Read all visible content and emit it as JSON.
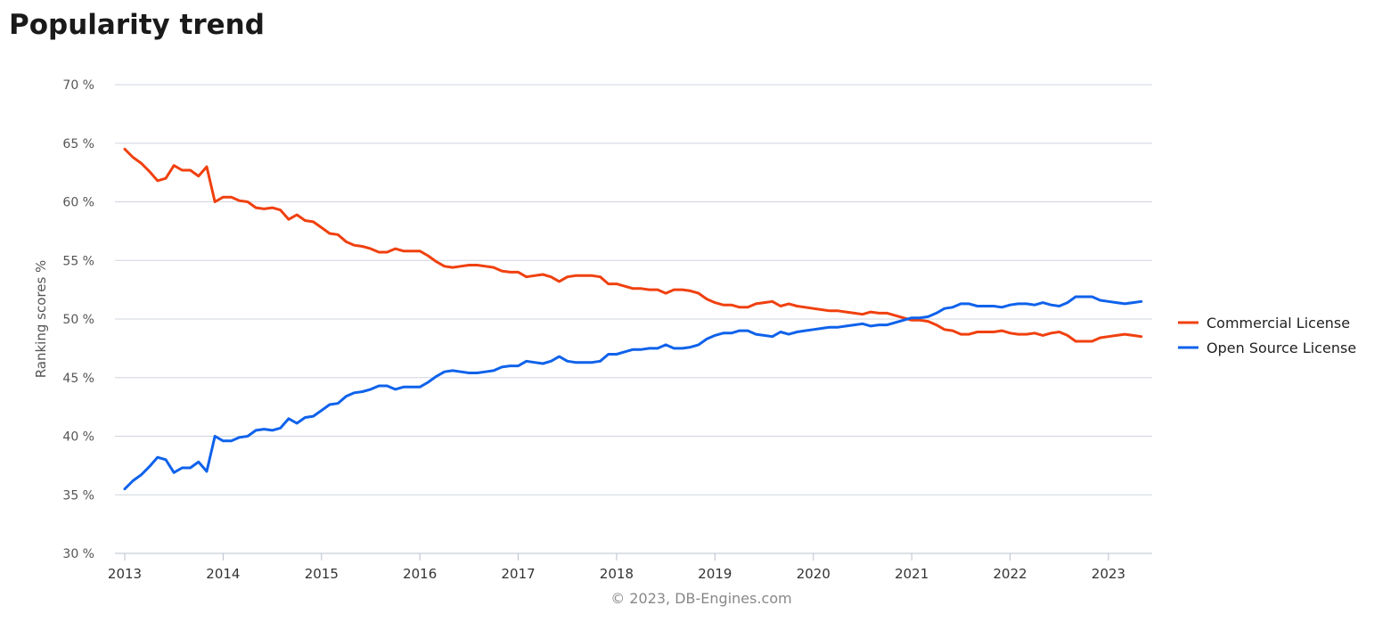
{
  "page": {
    "title": "Popularity trend"
  },
  "chart_data": {
    "type": "line",
    "x_axis": {
      "range": [
        "2013-01",
        "2023-05"
      ],
      "ticks": [
        "2013",
        "2014",
        "2015",
        "2016",
        "2017",
        "2018",
        "2019",
        "2020",
        "2021",
        "2022",
        "2023"
      ]
    },
    "y_axis": {
      "label": "Ranking scores %",
      "range": [
        30,
        70
      ],
      "ticks": [
        "30 %",
        "35 %",
        "40 %",
        "45 %",
        "50 %",
        "55 %",
        "60 %",
        "65 %",
        "70 %"
      ],
      "tick_values": [
        30,
        35,
        40,
        45,
        50,
        55,
        60,
        65,
        70
      ]
    },
    "grid": true,
    "legend_position": "right",
    "credit": "© 2023, DB-Engines.com",
    "series": [
      {
        "name": "Commercial License",
        "color": "#f0400f",
        "points": [
          [
            "2013-01",
            64.5
          ],
          [
            "2013-02",
            63.8
          ],
          [
            "2013-03",
            63.3
          ],
          [
            "2013-04",
            62.6
          ],
          [
            "2013-05",
            61.8
          ],
          [
            "2013-06",
            62.0
          ],
          [
            "2013-07",
            63.1
          ],
          [
            "2013-08",
            62.7
          ],
          [
            "2013-09",
            62.7
          ],
          [
            "2013-10",
            62.2
          ],
          [
            "2013-11",
            63.0
          ],
          [
            "2013-12",
            60.0
          ],
          [
            "2014-01",
            60.4
          ],
          [
            "2014-02",
            60.4
          ],
          [
            "2014-03",
            60.1
          ],
          [
            "2014-04",
            60.0
          ],
          [
            "2014-05",
            59.5
          ],
          [
            "2014-06",
            59.4
          ],
          [
            "2014-07",
            59.5
          ],
          [
            "2014-08",
            59.3
          ],
          [
            "2014-09",
            58.5
          ],
          [
            "2014-10",
            58.9
          ],
          [
            "2014-11",
            58.4
          ],
          [
            "2014-12",
            58.3
          ],
          [
            "2015-01",
            57.8
          ],
          [
            "2015-02",
            57.3
          ],
          [
            "2015-03",
            57.2
          ],
          [
            "2015-04",
            56.6
          ],
          [
            "2015-05",
            56.3
          ],
          [
            "2015-06",
            56.2
          ],
          [
            "2015-07",
            56.0
          ],
          [
            "2015-08",
            55.7
          ],
          [
            "2015-09",
            55.7
          ],
          [
            "2015-10",
            56.0
          ],
          [
            "2015-11",
            55.8
          ],
          [
            "2015-12",
            55.8
          ],
          [
            "2016-01",
            55.8
          ],
          [
            "2016-02",
            55.4
          ],
          [
            "2016-03",
            54.9
          ],
          [
            "2016-04",
            54.5
          ],
          [
            "2016-05",
            54.4
          ],
          [
            "2016-06",
            54.5
          ],
          [
            "2016-07",
            54.6
          ],
          [
            "2016-08",
            54.6
          ],
          [
            "2016-09",
            54.5
          ],
          [
            "2016-10",
            54.4
          ],
          [
            "2016-11",
            54.1
          ],
          [
            "2016-12",
            54.0
          ],
          [
            "2017-01",
            54.0
          ],
          [
            "2017-02",
            53.6
          ],
          [
            "2017-03",
            53.7
          ],
          [
            "2017-04",
            53.8
          ],
          [
            "2017-05",
            53.6
          ],
          [
            "2017-06",
            53.2
          ],
          [
            "2017-07",
            53.6
          ],
          [
            "2017-08",
            53.7
          ],
          [
            "2017-09",
            53.7
          ],
          [
            "2017-10",
            53.7
          ],
          [
            "2017-11",
            53.6
          ],
          [
            "2017-12",
            53.0
          ],
          [
            "2018-01",
            53.0
          ],
          [
            "2018-02",
            52.8
          ],
          [
            "2018-03",
            52.6
          ],
          [
            "2018-04",
            52.6
          ],
          [
            "2018-05",
            52.5
          ],
          [
            "2018-06",
            52.5
          ],
          [
            "2018-07",
            52.2
          ],
          [
            "2018-08",
            52.5
          ],
          [
            "2018-09",
            52.5
          ],
          [
            "2018-10",
            52.4
          ],
          [
            "2018-11",
            52.2
          ],
          [
            "2018-12",
            51.7
          ],
          [
            "2019-01",
            51.4
          ],
          [
            "2019-02",
            51.2
          ],
          [
            "2019-03",
            51.2
          ],
          [
            "2019-04",
            51.0
          ],
          [
            "2019-05",
            51.0
          ],
          [
            "2019-06",
            51.3
          ],
          [
            "2019-07",
            51.4
          ],
          [
            "2019-08",
            51.5
          ],
          [
            "2019-09",
            51.1
          ],
          [
            "2019-10",
            51.3
          ],
          [
            "2019-11",
            51.1
          ],
          [
            "2019-12",
            51.0
          ],
          [
            "2020-01",
            50.9
          ],
          [
            "2020-02",
            50.8
          ],
          [
            "2020-03",
            50.7
          ],
          [
            "2020-04",
            50.7
          ],
          [
            "2020-05",
            50.6
          ],
          [
            "2020-06",
            50.5
          ],
          [
            "2020-07",
            50.4
          ],
          [
            "2020-08",
            50.6
          ],
          [
            "2020-09",
            50.5
          ],
          [
            "2020-10",
            50.5
          ],
          [
            "2020-11",
            50.3
          ],
          [
            "2020-12",
            50.1
          ],
          [
            "2021-01",
            49.9
          ],
          [
            "2021-02",
            49.9
          ],
          [
            "2021-03",
            49.8
          ],
          [
            "2021-04",
            49.5
          ],
          [
            "2021-05",
            49.1
          ],
          [
            "2021-06",
            49.0
          ],
          [
            "2021-07",
            48.7
          ],
          [
            "2021-08",
            48.7
          ],
          [
            "2021-09",
            48.9
          ],
          [
            "2021-10",
            48.9
          ],
          [
            "2021-11",
            48.9
          ],
          [
            "2021-12",
            49.0
          ],
          [
            "2022-01",
            48.8
          ],
          [
            "2022-02",
            48.7
          ],
          [
            "2022-03",
            48.7
          ],
          [
            "2022-04",
            48.8
          ],
          [
            "2022-05",
            48.6
          ],
          [
            "2022-06",
            48.8
          ],
          [
            "2022-07",
            48.9
          ],
          [
            "2022-08",
            48.6
          ],
          [
            "2022-09",
            48.1
          ],
          [
            "2022-10",
            48.1
          ],
          [
            "2022-11",
            48.1
          ],
          [
            "2022-12",
            48.4
          ],
          [
            "2023-01",
            48.5
          ],
          [
            "2023-02",
            48.6
          ],
          [
            "2023-03",
            48.7
          ],
          [
            "2023-04",
            48.6
          ],
          [
            "2023-05",
            48.5
          ]
        ]
      },
      {
        "name": "Open Source License",
        "color": "#0f62eb",
        "points": [
          [
            "2013-01",
            35.5
          ],
          [
            "2013-02",
            36.2
          ],
          [
            "2013-03",
            36.7
          ],
          [
            "2013-04",
            37.4
          ],
          [
            "2013-05",
            38.2
          ],
          [
            "2013-06",
            38.0
          ],
          [
            "2013-07",
            36.9
          ],
          [
            "2013-08",
            37.3
          ],
          [
            "2013-09",
            37.3
          ],
          [
            "2013-10",
            37.8
          ],
          [
            "2013-11",
            37.0
          ],
          [
            "2013-12",
            40.0
          ],
          [
            "2014-01",
            39.6
          ],
          [
            "2014-02",
            39.6
          ],
          [
            "2014-03",
            39.9
          ],
          [
            "2014-04",
            40.0
          ],
          [
            "2014-05",
            40.5
          ],
          [
            "2014-06",
            40.6
          ],
          [
            "2014-07",
            40.5
          ],
          [
            "2014-08",
            40.7
          ],
          [
            "2014-09",
            41.5
          ],
          [
            "2014-10",
            41.1
          ],
          [
            "2014-11",
            41.6
          ],
          [
            "2014-12",
            41.7
          ],
          [
            "2015-01",
            42.2
          ],
          [
            "2015-02",
            42.7
          ],
          [
            "2015-03",
            42.8
          ],
          [
            "2015-04",
            43.4
          ],
          [
            "2015-05",
            43.7
          ],
          [
            "2015-06",
            43.8
          ],
          [
            "2015-07",
            44.0
          ],
          [
            "2015-08",
            44.3
          ],
          [
            "2015-09",
            44.3
          ],
          [
            "2015-10",
            44.0
          ],
          [
            "2015-11",
            44.2
          ],
          [
            "2015-12",
            44.2
          ],
          [
            "2016-01",
            44.2
          ],
          [
            "2016-02",
            44.6
          ],
          [
            "2016-03",
            45.1
          ],
          [
            "2016-04",
            45.5
          ],
          [
            "2016-05",
            45.6
          ],
          [
            "2016-06",
            45.5
          ],
          [
            "2016-07",
            45.4
          ],
          [
            "2016-08",
            45.4
          ],
          [
            "2016-09",
            45.5
          ],
          [
            "2016-10",
            45.6
          ],
          [
            "2016-11",
            45.9
          ],
          [
            "2016-12",
            46.0
          ],
          [
            "2017-01",
            46.0
          ],
          [
            "2017-02",
            46.4
          ],
          [
            "2017-03",
            46.3
          ],
          [
            "2017-04",
            46.2
          ],
          [
            "2017-05",
            46.4
          ],
          [
            "2017-06",
            46.8
          ],
          [
            "2017-07",
            46.4
          ],
          [
            "2017-08",
            46.3
          ],
          [
            "2017-09",
            46.3
          ],
          [
            "2017-10",
            46.3
          ],
          [
            "2017-11",
            46.4
          ],
          [
            "2017-12",
            47.0
          ],
          [
            "2018-01",
            47.0
          ],
          [
            "2018-02",
            47.2
          ],
          [
            "2018-03",
            47.4
          ],
          [
            "2018-04",
            47.4
          ],
          [
            "2018-05",
            47.5
          ],
          [
            "2018-06",
            47.5
          ],
          [
            "2018-07",
            47.8
          ],
          [
            "2018-08",
            47.5
          ],
          [
            "2018-09",
            47.5
          ],
          [
            "2018-10",
            47.6
          ],
          [
            "2018-11",
            47.8
          ],
          [
            "2018-12",
            48.3
          ],
          [
            "2019-01",
            48.6
          ],
          [
            "2019-02",
            48.8
          ],
          [
            "2019-03",
            48.8
          ],
          [
            "2019-04",
            49.0
          ],
          [
            "2019-05",
            49.0
          ],
          [
            "2019-06",
            48.7
          ],
          [
            "2019-07",
            48.6
          ],
          [
            "2019-08",
            48.5
          ],
          [
            "2019-09",
            48.9
          ],
          [
            "2019-10",
            48.7
          ],
          [
            "2019-11",
            48.9
          ],
          [
            "2019-12",
            49.0
          ],
          [
            "2020-01",
            49.1
          ],
          [
            "2020-02",
            49.2
          ],
          [
            "2020-03",
            49.3
          ],
          [
            "2020-04",
            49.3
          ],
          [
            "2020-05",
            49.4
          ],
          [
            "2020-06",
            49.5
          ],
          [
            "2020-07",
            49.6
          ],
          [
            "2020-08",
            49.4
          ],
          [
            "2020-09",
            49.5
          ],
          [
            "2020-10",
            49.5
          ],
          [
            "2020-11",
            49.7
          ],
          [
            "2020-12",
            49.9
          ],
          [
            "2021-01",
            50.1
          ],
          [
            "2021-02",
            50.1
          ],
          [
            "2021-03",
            50.2
          ],
          [
            "2021-04",
            50.5
          ],
          [
            "2021-05",
            50.9
          ],
          [
            "2021-06",
            51.0
          ],
          [
            "2021-07",
            51.3
          ],
          [
            "2021-08",
            51.3
          ],
          [
            "2021-09",
            51.1
          ],
          [
            "2021-10",
            51.1
          ],
          [
            "2021-11",
            51.1
          ],
          [
            "2021-12",
            51.0
          ],
          [
            "2022-01",
            51.2
          ],
          [
            "2022-02",
            51.3
          ],
          [
            "2022-03",
            51.3
          ],
          [
            "2022-04",
            51.2
          ],
          [
            "2022-05",
            51.4
          ],
          [
            "2022-06",
            51.2
          ],
          [
            "2022-07",
            51.1
          ],
          [
            "2022-08",
            51.4
          ],
          [
            "2022-09",
            51.9
          ],
          [
            "2022-10",
            51.9
          ],
          [
            "2022-11",
            51.9
          ],
          [
            "2022-12",
            51.6
          ],
          [
            "2023-01",
            51.5
          ],
          [
            "2023-02",
            51.4
          ],
          [
            "2023-03",
            51.3
          ],
          [
            "2023-04",
            51.4
          ],
          [
            "2023-05",
            51.5
          ]
        ]
      }
    ]
  }
}
